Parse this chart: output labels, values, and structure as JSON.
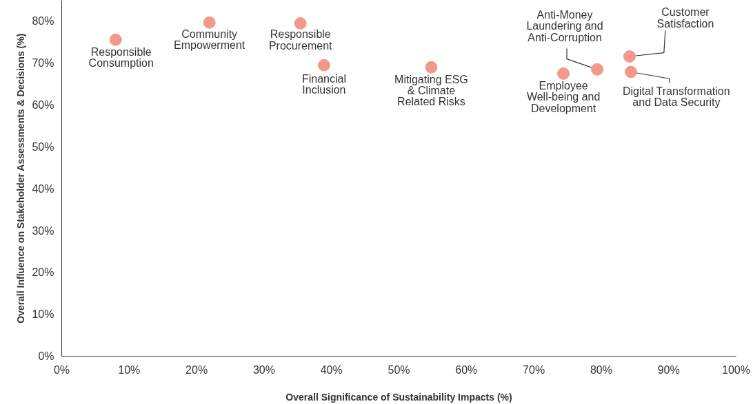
{
  "chart_data": {
    "type": "scatter",
    "xlabel": "Overall Significance of Sustainability Impacts (%)",
    "ylabel": "Overall Influence on Stakeholder Assessments & Decisions (%)",
    "xlim": [
      0,
      100
    ],
    "ylim": [
      0,
      85
    ],
    "xticks": [
      {
        "value": 0,
        "label": "0%"
      },
      {
        "value": 10,
        "label": "10%"
      },
      {
        "value": 20,
        "label": "20%"
      },
      {
        "value": 30,
        "label": "30%"
      },
      {
        "value": 40,
        "label": "40%"
      },
      {
        "value": 50,
        "label": "50%"
      },
      {
        "value": 60,
        "label": "60%"
      },
      {
        "value": 70,
        "label": "70%"
      },
      {
        "value": 80,
        "label": "80%"
      },
      {
        "value": 90,
        "label": "90%"
      },
      {
        "value": 100,
        "label": "100%"
      }
    ],
    "yticks": [
      {
        "value": 0,
        "label": "0%"
      },
      {
        "value": 10,
        "label": "10%"
      },
      {
        "value": 20,
        "label": "20%"
      },
      {
        "value": 30,
        "label": "30%"
      },
      {
        "value": 40,
        "label": "40%"
      },
      {
        "value": 50,
        "label": "50%"
      },
      {
        "value": 60,
        "label": "60%"
      },
      {
        "value": 70,
        "label": "70%"
      },
      {
        "value": 80,
        "label": "80%"
      }
    ],
    "grid": false,
    "legend": false,
    "marker": "circle",
    "series": [
      {
        "name": "Responsible\nConsumption",
        "color": "#f3998c",
        "x": [
          8.0
        ],
        "values": [
          75.6
        ]
      },
      {
        "name": "Community\nEmpowerment",
        "color": "#f3998c",
        "x": [
          21.9
        ],
        "values": [
          79.7
        ]
      },
      {
        "name": "Responsible\nProcurement",
        "color": "#f3998c",
        "x": [
          35.4
        ],
        "values": [
          79.5
        ]
      },
      {
        "name": "Financial\nInclusion",
        "color": "#f3998c",
        "x": [
          38.9
        ],
        "values": [
          69.5
        ]
      },
      {
        "name": "Mitigating ESG\n& Climate\nRelated Risks",
        "color": "#f3998c",
        "x": [
          54.8
        ],
        "values": [
          69.0
        ]
      },
      {
        "name": "Employee\nWell-being and\nDevelopment",
        "color": "#f3998c",
        "x": [
          74.4
        ],
        "values": [
          67.5
        ]
      },
      {
        "name": "Anti-Money\nLaundering and\nAnti-Corruption",
        "color": "#f3998c",
        "x": [
          79.4
        ],
        "values": [
          68.5
        ]
      },
      {
        "name": "Customer\nSatisfaction",
        "color": "#f3998c",
        "x": [
          84.2
        ],
        "values": [
          71.6
        ]
      },
      {
        "name": "Digital Transformation\nand Data Security",
        "color": "#f3998c",
        "x": [
          84.4
        ],
        "values": [
          67.9
        ]
      }
    ]
  }
}
